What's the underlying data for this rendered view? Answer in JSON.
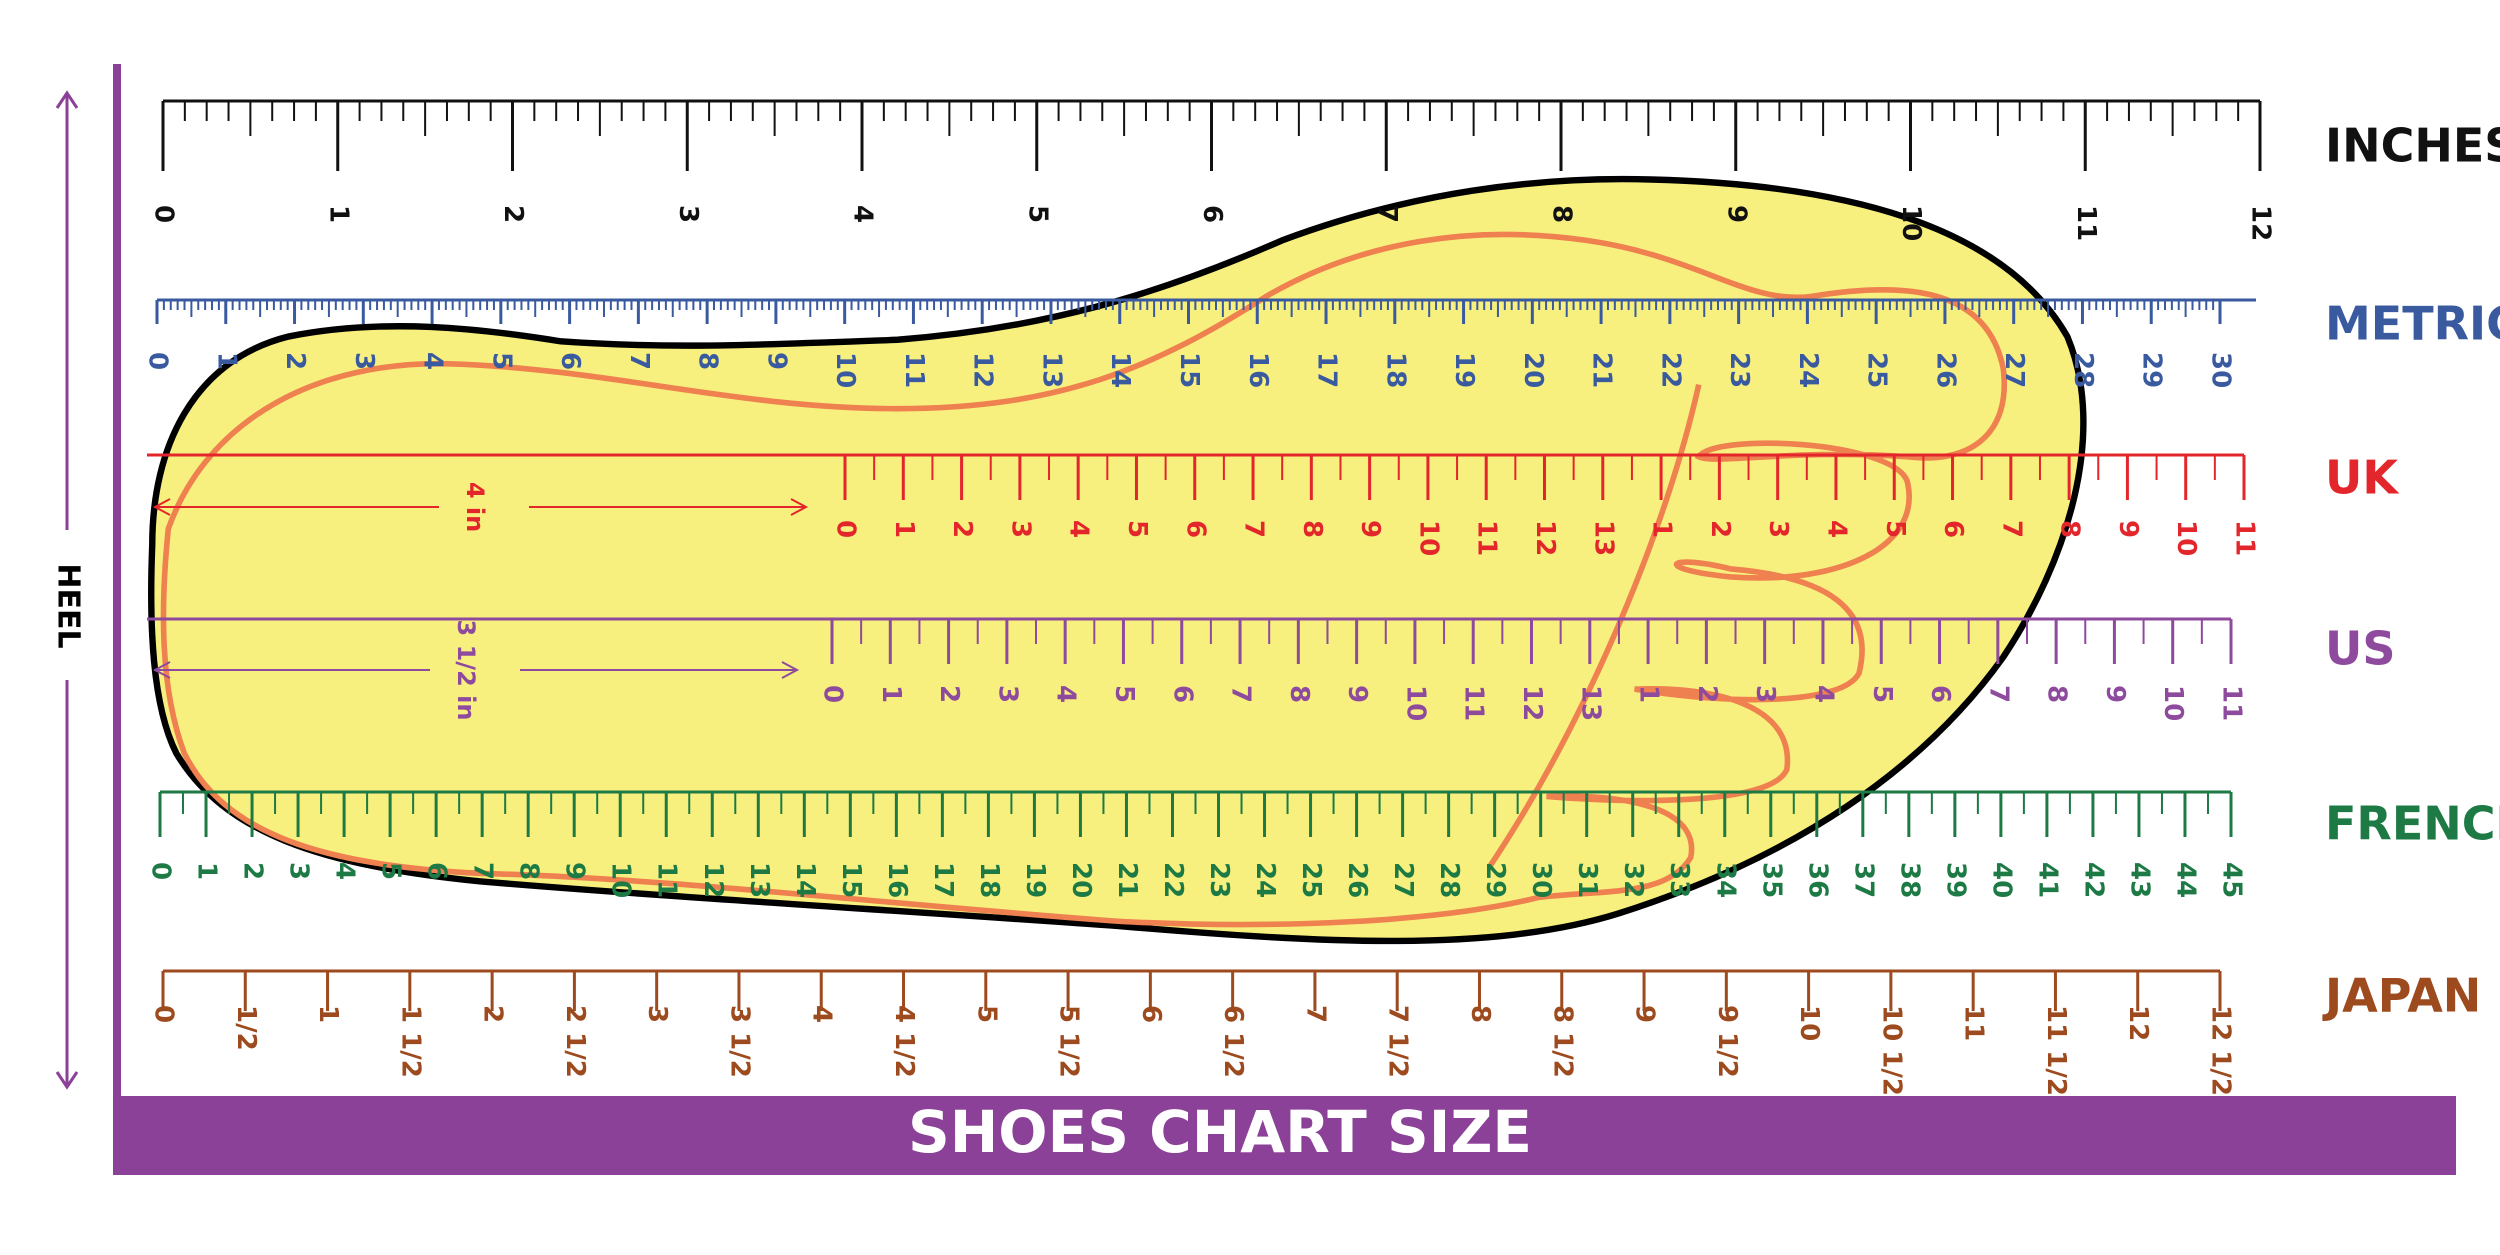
{
  "title": "SHOES CHART SIZE",
  "side_label": "HEEL",
  "rulers": [
    {
      "name": "INCHES",
      "color": "#111111",
      "labels": [
        "0",
        "1",
        "2",
        "3",
        "4",
        "5",
        "6",
        "7",
        "8",
        "9",
        "10",
        "11",
        "12"
      ]
    },
    {
      "name": "METRIC",
      "color": "#3a5aa0",
      "labels": [
        "0",
        "1",
        "2",
        "3",
        "4",
        "5",
        "6",
        "7",
        "8",
        "9",
        "10",
        "11",
        "12",
        "13",
        "14",
        "15",
        "16",
        "17",
        "18",
        "19",
        "20",
        "21",
        "22",
        "23",
        "24",
        "25",
        "26",
        "27",
        "28",
        "29",
        "30"
      ]
    },
    {
      "name": "UK",
      "color": "#e3262b",
      "labels": [
        "0",
        "1",
        "2",
        "3",
        "4",
        "5",
        "6",
        "7",
        "8",
        "9",
        "10",
        "11",
        "12",
        "13",
        "1",
        "2",
        "3",
        "4",
        "5",
        "6",
        "7",
        "8",
        "9",
        "10",
        "11"
      ]
    },
    {
      "name": "US",
      "color": "#8e4a9c",
      "labels": [
        "0",
        "1",
        "2",
        "3",
        "4",
        "5",
        "6",
        "7",
        "8",
        "9",
        "10",
        "11",
        "12",
        "13",
        "1",
        "2",
        "3",
        "4",
        "5",
        "6",
        "7",
        "8",
        "9",
        "10",
        "11"
      ]
    },
    {
      "name": "FRENCH",
      "color": "#1d7a45",
      "labels": [
        "0",
        "1",
        "2",
        "3",
        "4",
        "5",
        "6",
        "7",
        "8",
        "9",
        "10",
        "11",
        "12",
        "13",
        "14",
        "15",
        "16",
        "17",
        "18",
        "19",
        "20",
        "21",
        "22",
        "23",
        "24",
        "25",
        "26",
        "27",
        "28",
        "29",
        "30",
        "31",
        "32",
        "33",
        "34",
        "35",
        "36",
        "37",
        "38",
        "39",
        "40",
        "41",
        "42",
        "43",
        "44",
        "45"
      ]
    },
    {
      "name": "JAPAN",
      "color": "#9c4a1e",
      "labels": [
        "0",
        "1/2",
        "1",
        "1 1/2",
        "2",
        "2 1/2",
        "3",
        "3 1/2",
        "4",
        "4 1/2",
        "5",
        "5 1/2",
        "6",
        "6 1/2",
        "7",
        "7 1/2",
        "8",
        "8 1/2",
        "9",
        "9 1/2",
        "10",
        "10 1/2",
        "11",
        "11 1/2",
        "12",
        "12 1/2"
      ]
    }
  ],
  "annotations": [
    {
      "text": "4 in"
    },
    {
      "text": "3 1/2 in"
    }
  ]
}
